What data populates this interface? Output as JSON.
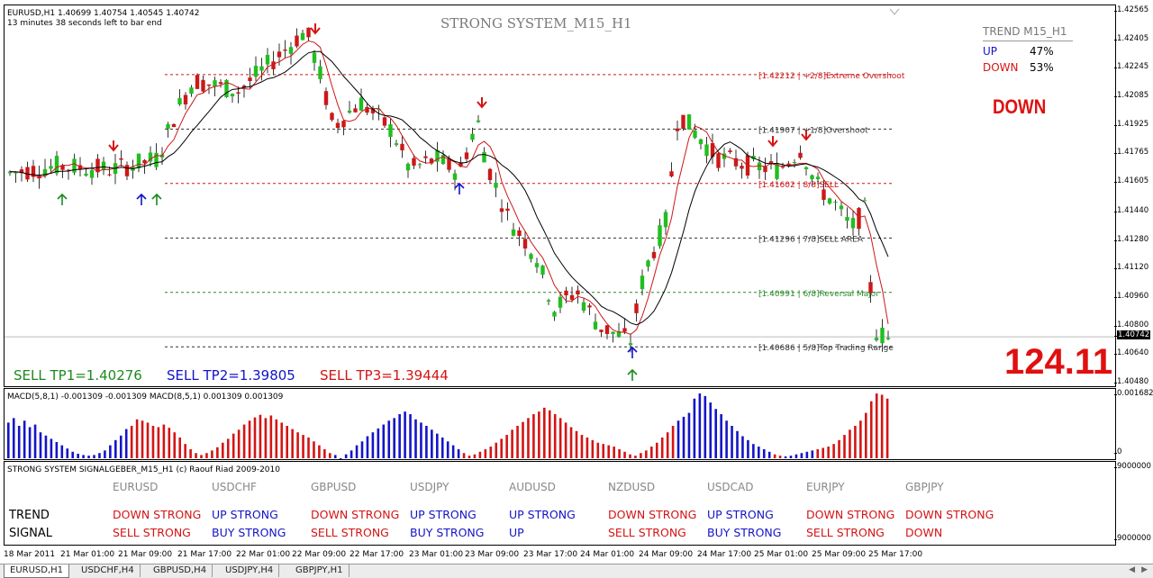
{
  "main": {
    "header_line1": "EURUSD,H1  1.40699 1.40754 1.40545 1.40742",
    "header_line2": "13 minutes 38 seconds left to bar end",
    "title": "STRONG SYSTEM_M15_H1",
    "trend_box": {
      "title": "TREND M15_H1",
      "up_label": "UP",
      "up_value": "47%",
      "down_label": "DOWN",
      "down_value": "53%"
    },
    "signal": "DOWN",
    "big_number": "124.11",
    "tp1": "SELL TP1=1.40276",
    "tp2": "SELL TP2=1.39805",
    "tp3": "SELL TP3=1.39444",
    "murrey_labels": [
      "[1.42212 | +2/8]Extreme Overshoot",
      "[1.41907 | +1/8]Overshoot",
      "[1.41602 | 8/8]SELL",
      "[1.41296 | 7/8]SELL AREA",
      "[1.40991 | 6/8]Reversal Major",
      "[1.40686 | 5/8]Top Trading Range"
    ],
    "price_ticks": [
      "1.42565",
      "1.42405",
      "1.42245",
      "1.42085",
      "1.41925",
      "1.41765",
      "1.41605",
      "1.41440",
      "1.41280",
      "1.41120",
      "1.40960",
      "1.40800",
      "1.40640",
      "1.40480"
    ],
    "current_price": "1.40742"
  },
  "macd": {
    "label": "MACD(5,8,1) -0.001309 -0.001309  MACD(8,5,1) 0.001309 0.001309",
    "ticks": [
      "0.001682",
      "0"
    ],
    "bars": [
      0.55,
      0.62,
      0.5,
      0.58,
      0.48,
      0.52,
      0.4,
      0.35,
      0.3,
      0.25,
      0.2,
      0.15,
      0.1,
      0.07,
      0.05,
      0.04,
      0.05,
      0.08,
      0.12,
      0.2,
      0.28,
      0.35,
      0.45,
      0.5,
      0.6,
      0.58,
      0.55,
      0.5,
      0.48,
      0.52,
      0.47,
      0.4,
      0.32,
      0.22,
      0.14,
      0.08,
      0.05,
      0.08,
      0.12,
      0.17,
      0.24,
      0.3,
      0.38,
      0.44,
      0.52,
      0.58,
      0.63,
      0.67,
      0.62,
      0.66,
      0.6,
      0.55,
      0.5,
      0.45,
      0.4,
      0.36,
      0.32,
      0.26,
      0.2,
      0.14,
      0.08,
      0.05,
      -0.05,
      0.06,
      0.12,
      0.2,
      0.26,
      0.34,
      0.4,
      0.46,
      0.52,
      0.58,
      0.62,
      0.68,
      0.72,
      0.68,
      0.6,
      0.55,
      0.5,
      0.44,
      0.38,
      0.32,
      0.26,
      0.2,
      0.14,
      0.08,
      0.04,
      0.06,
      0.1,
      0.14,
      0.18,
      0.24,
      0.3,
      0.36,
      0.44,
      0.5,
      0.56,
      0.62,
      0.68,
      0.72,
      0.78,
      0.74,
      0.68,
      0.62,
      0.55,
      0.48,
      0.42,
      0.36,
      0.32,
      0.28,
      0.24,
      0.22,
      0.2,
      0.18,
      0.14,
      0.1,
      0.06,
      0.04,
      0.08,
      0.12,
      0.18,
      0.24,
      0.32,
      0.4,
      0.5,
      0.58,
      0.64,
      0.7,
      0.92,
      1.0,
      0.96,
      0.86,
      0.76,
      0.68,
      0.58,
      0.5,
      0.42,
      0.34,
      0.28,
      0.22,
      0.18,
      0.14,
      0.1,
      0.06,
      0.04,
      0.03,
      0.04,
      0.06,
      0.08,
      0.1,
      0.12,
      0.14,
      0.16,
      0.18,
      0.22,
      0.28,
      0.36,
      0.44,
      0.5,
      0.58,
      0.7,
      0.88,
      1.0,
      0.98,
      0.92
    ]
  },
  "signals": {
    "title": "STRONG SYSTEM SIGNALGEBER_M15_H1 (c) Raouf Riad 2009-2010",
    "row_trend": "TREND",
    "row_signal": "SIGNAL",
    "right_ticks": [
      "9000000",
      "9000000"
    ],
    "pairs": [
      {
        "name": "EURUSD",
        "trend": "DOWN STRONG",
        "trend_dir": "down",
        "signal": "SELL STRONG",
        "signal_dir": "down"
      },
      {
        "name": "USDCHF",
        "trend": "UP STRONG",
        "trend_dir": "up",
        "signal": "BUY STRONG",
        "signal_dir": "up"
      },
      {
        "name": "GBPUSD",
        "trend": "DOWN STRONG",
        "trend_dir": "down",
        "signal": "SELL STRONG",
        "signal_dir": "down"
      },
      {
        "name": "USDJPY",
        "trend": "UP STRONG",
        "trend_dir": "up",
        "signal": "BUY STRONG",
        "signal_dir": "up"
      },
      {
        "name": "AUDUSD",
        "trend": "UP STRONG",
        "trend_dir": "up",
        "signal": "UP",
        "signal_dir": "up"
      },
      {
        "name": "NZDUSD",
        "trend": "DOWN STRONG",
        "trend_dir": "down",
        "signal": "SELL STRONG",
        "signal_dir": "down"
      },
      {
        "name": "USDCAD",
        "trend": "UP STRONG",
        "trend_dir": "up",
        "signal": "BUY STRONG",
        "signal_dir": "up"
      },
      {
        "name": "EURJPY",
        "trend": "DOWN STRONG",
        "trend_dir": "down",
        "signal": "SELL STRONG",
        "signal_dir": "down"
      },
      {
        "name": "GBPJPY",
        "trend": "DOWN STRONG",
        "trend_dir": "down",
        "signal": "DOWN",
        "signal_dir": "down"
      }
    ]
  },
  "xaxis": [
    "18 Mar 2011",
    "21 Mar 01:00",
    "21 Mar 09:00",
    "21 Mar 17:00",
    "22 Mar 01:00",
    "22 Mar 09:00",
    "22 Mar 17:00",
    "23 Mar 01:00",
    "23 Mar 09:00",
    "23 Mar 17:00",
    "24 Mar 01:00",
    "24 Mar 09:00",
    "24 Mar 17:00",
    "25 Mar 01:00",
    "25 Mar 09:00",
    "25 Mar 17:00"
  ],
  "tabs": [
    "EURUSD,H1",
    "USDCHF,H4",
    "GBPUSD,H4",
    "USDJPY,H4",
    "GBPJPY,H1"
  ],
  "colors": {
    "bull": "#1fbf1f",
    "bear": "#cc1818",
    "up": "#1414c8",
    "down": "#d41414",
    "fast_ma": "#cc1818",
    "slow_ma": "#000000",
    "murrey_red": "#cc1818",
    "murrey_green": "#2a8a2a",
    "murrey_black": "#333333"
  }
}
